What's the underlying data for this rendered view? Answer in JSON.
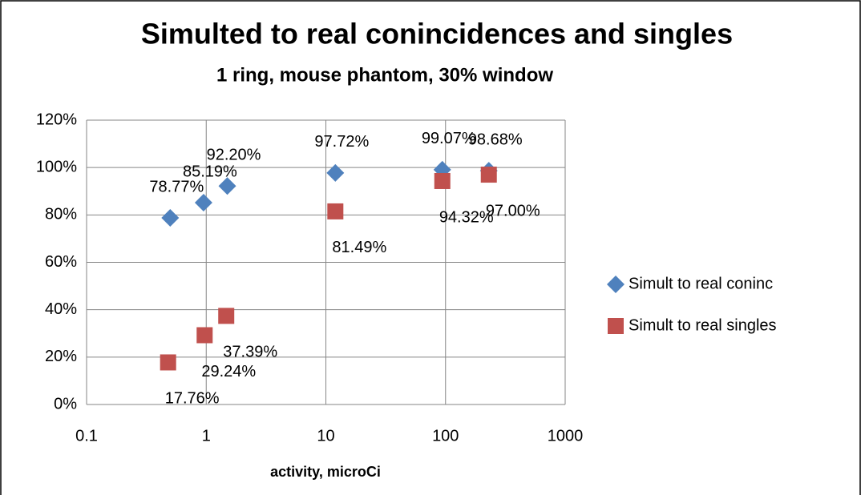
{
  "chart_data": {
    "type": "scatter",
    "title": "Simulted to real conincidences and singles",
    "subtitle": "1 ring, mouse phantom, 30% window",
    "x_label": "activity,  microCi",
    "x_log": true,
    "grid": true,
    "legend": "right",
    "xlim": [
      0.1,
      1000
    ],
    "xticks": [
      0.1,
      1,
      10,
      100,
      1000
    ],
    "ylim": [
      0,
      120
    ],
    "yticks": [
      {
        "value": 0,
        "label": "0%"
      },
      {
        "value": 20,
        "label": "20%"
      },
      {
        "value": 40,
        "label": "40%"
      },
      {
        "value": 60,
        "label": "60%"
      },
      {
        "value": 80,
        "label": "80%"
      },
      {
        "value": 100,
        "label": "100%"
      },
      {
        "value": 120,
        "label": "120%"
      }
    ],
    "series": [
      {
        "name": "Simult to real coninc",
        "color": "#4f81bd",
        "marker": "diamond",
        "x": [
          0.5,
          0.95,
          1.5,
          12,
          94,
          230
        ],
        "values": [
          78.77,
          85.19,
          92.2,
          97.72,
          99.07,
          98.68
        ],
        "value_labels": [
          "78.77%",
          "85.19%",
          "92.20%",
          "97.72%",
          "99.07%",
          "98.68%"
        ]
      },
      {
        "name": "Simult to real singles",
        "color": "#c0504d",
        "marker": "square",
        "x": [
          0.48,
          0.97,
          1.47,
          12,
          94,
          230
        ],
        "values": [
          17.76,
          29.24,
          37.39,
          81.49,
          94.32,
          97.0
        ],
        "value_labels": [
          "17.76%",
          "29.24%",
          "37.39%",
          "81.49%",
          "94.32%",
          "97.00%"
        ]
      }
    ]
  }
}
